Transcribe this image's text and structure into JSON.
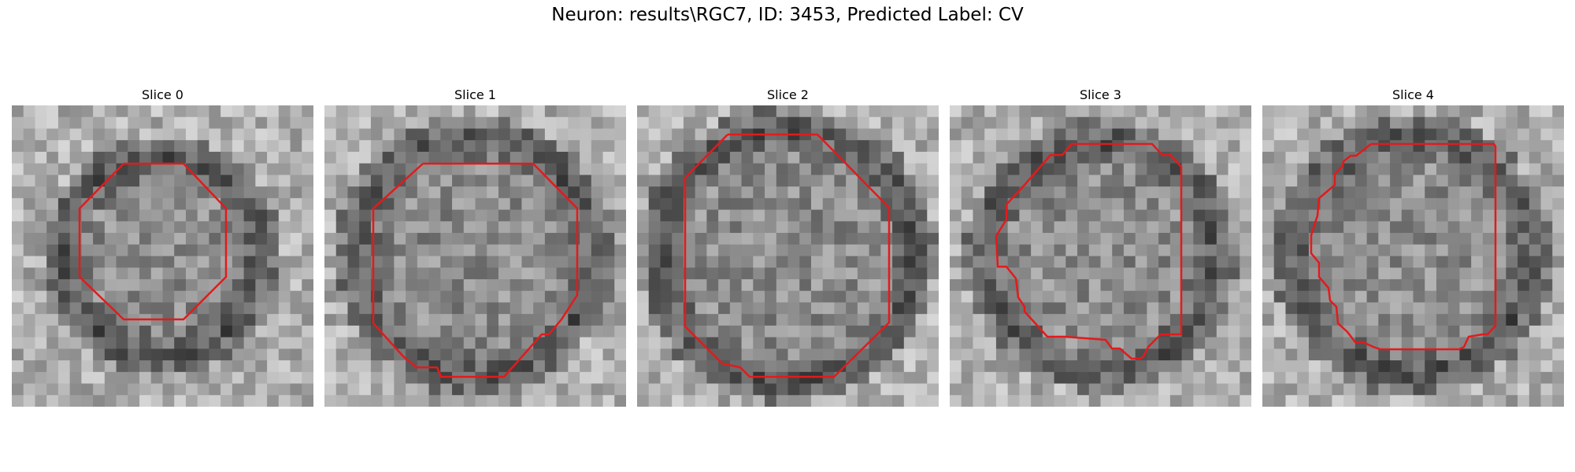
{
  "figure": {
    "title": "Neuron: results\\RGC7, ID: 3453, Predicted Label: CV"
  },
  "colors": {
    "contour": "#e31a1c",
    "background": "#ffffff"
  },
  "panels": [
    {
      "title": "Slice 0",
      "image": "grayscale EM crop",
      "contour_color": "#e31a1c"
    },
    {
      "title": "Slice 1",
      "image": "grayscale EM crop",
      "contour_color": "#e31a1c"
    },
    {
      "title": "Slice 2",
      "image": "grayscale EM crop",
      "contour_color": "#e31a1c"
    },
    {
      "title": "Slice 3",
      "image": "grayscale EM crop",
      "contour_color": "#e31a1c"
    },
    {
      "title": "Slice 4",
      "image": "grayscale EM crop",
      "contour_color": "#e31a1c"
    }
  ]
}
